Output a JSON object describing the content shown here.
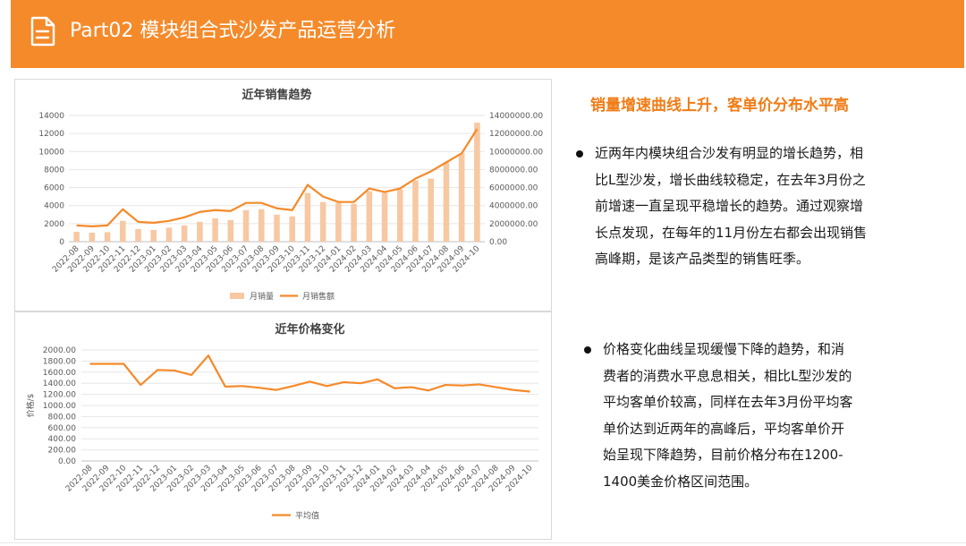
{
  "header": {
    "title": "Part02 模块组合式沙发产品运营分析",
    "icon": "document-icon",
    "bg_color": "#f58a2a"
  },
  "chart_data": [
    {
      "type": "bar+line",
      "title": "近年销售趋势",
      "categories": [
        "2022-08",
        "2022-09",
        "2022-10",
        "2022-11",
        "2022-12",
        "2023-01",
        "2023-02",
        "2023-03",
        "2023-04",
        "2023-05",
        "2023-06",
        "2023-07",
        "2023-08",
        "2023-09",
        "2023-10",
        "2023-11",
        "2023-12",
        "2024-01",
        "2024-02",
        "2024-03",
        "2024-04",
        "2024-05",
        "2024-06",
        "2024-07",
        "2024-08",
        "2024-09",
        "2024-10"
      ],
      "series": [
        {
          "name": "月销量",
          "type": "bar",
          "axis": "left",
          "color": "#f7c8a2",
          "values": [
            1100,
            1000,
            1050,
            2300,
            1400,
            1300,
            1550,
            1800,
            2200,
            2600,
            2400,
            3500,
            3600,
            3000,
            2800,
            5400,
            4400,
            4300,
            4200,
            5600,
            5400,
            5800,
            6800,
            7000,
            8800,
            9800,
            13200
          ]
        },
        {
          "name": "月销售额",
          "type": "line",
          "axis": "right",
          "color": "#f58a2a",
          "values": [
            1800000,
            1700000,
            1800000,
            3600000,
            2200000,
            2100000,
            2300000,
            2700000,
            3300000,
            3500000,
            3400000,
            4300000,
            4300000,
            3700000,
            3500000,
            6300000,
            5000000,
            4400000,
            4400000,
            5900000,
            5500000,
            5900000,
            7000000,
            7800000,
            8800000,
            9800000,
            12500000
          ]
        }
      ],
      "y_left": {
        "min": 0,
        "max": 14000,
        "step": 2000,
        "ticks": [
          "0",
          "2000",
          "4000",
          "6000",
          "8000",
          "10000",
          "12000",
          "14000"
        ]
      },
      "y_right": {
        "min": 0,
        "max": 14000000,
        "step": 2000000,
        "ticks": [
          "0.00",
          "2000000.00",
          "4000000.00",
          "6000000.00",
          "8000000.00",
          "10000000.00",
          "12000000.00",
          "14000000.00"
        ]
      },
      "legend": {
        "position": "bottom",
        "items": [
          "月销量",
          "月销售额"
        ]
      },
      "grid": true
    },
    {
      "type": "line",
      "title": "近年价格变化",
      "ylabel": "价格/$",
      "categories": [
        "2022-08",
        "2022-09",
        "2022-10",
        "2022-11",
        "2022-12",
        "2023-01",
        "2023-02",
        "2023-03",
        "2023-04",
        "2023-05",
        "2023-06",
        "2023-07",
        "2023-08",
        "2023-09",
        "2023-10",
        "2023-11",
        "2023-12",
        "2024-01",
        "2024-02",
        "2024-03",
        "2024-04",
        "2024-05",
        "2024-06",
        "2024-07",
        "2024-08",
        "2024-09",
        "2024-10"
      ],
      "series": [
        {
          "name": "平均值",
          "color": "#f58a2a",
          "values": [
            1750,
            1750,
            1750,
            1370,
            1640,
            1630,
            1550,
            1900,
            1340,
            1350,
            1320,
            1280,
            1350,
            1430,
            1350,
            1420,
            1400,
            1470,
            1310,
            1330,
            1270,
            1370,
            1360,
            1380,
            1330,
            1280,
            1250
          ]
        }
      ],
      "y": {
        "min": 0,
        "max": 2000,
        "step": 200,
        "ticks": [
          "0.00",
          "200.00",
          "400.00",
          "600.00",
          "800.00",
          "1000.00",
          "1200.00",
          "1400.00",
          "1600.00",
          "1800.00",
          "2000.00"
        ]
      },
      "legend": {
        "position": "bottom",
        "items": [
          "平均值"
        ]
      },
      "grid": true
    }
  ],
  "side": {
    "title": "销量增速曲线上升，客单价分布水平高",
    "title_color": "#f07c16",
    "para1_lines": [
      "近两年内模块组合沙发有明显的增长趋势，相",
      "比L型沙发，增长曲线较稳定，在去年3月份之",
      "前增速一直呈现平稳增长的趋势。通过观察增",
      "长点发现，在每年的11月份左右都会出现销售",
      "高峰期，是该产品类型的销售旺季。"
    ],
    "para2_lines": [
      "价格变化曲线呈现缓慢下降的趋势，和消",
      "费者的消费水平息息相关，相比L型沙发的",
      "平均客单价较高，同样在去年3月份平均客",
      "单价达到近两年的高峰后，平均客单价开",
      "始呈现下降趋势，目前价格分布在1200-",
      "1400美金价格区间范围。"
    ]
  }
}
